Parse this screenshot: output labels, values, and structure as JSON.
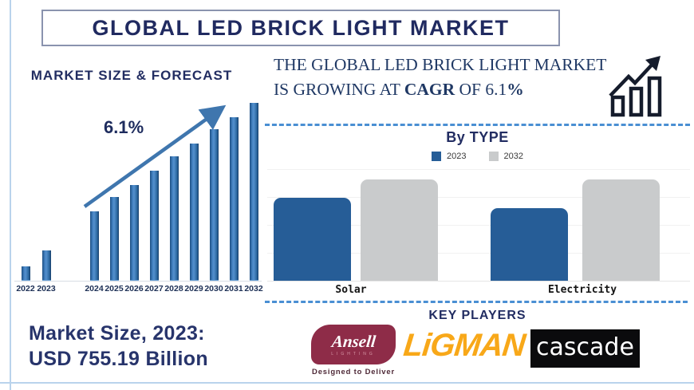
{
  "page_title": "GLOBAL LED BRICK LIGHT MARKET",
  "forecast_section": {
    "heading": "MARKET SIZE & FORECAST",
    "growth_annotation": "6.1%"
  },
  "statement": {
    "part1": "THE GLOBAL LED BRICK LIGHT MARKET IS GROWING AT ",
    "bold1": "CAGR",
    "part2": " OF 6.1",
    "bold2": "%"
  },
  "market_size": {
    "line1": "Market Size, 2023:",
    "line2": "USD 755.19 Billion"
  },
  "by_type_section": {
    "heading": "By TYPE"
  },
  "key_players": {
    "heading": "KEY PLAYERS",
    "logos": [
      {
        "name": "Ansell",
        "sub": "LIGHTING",
        "tagline": "Designed to Deliver",
        "brand_color": "#8e2c48"
      },
      {
        "name": "LiGMAN",
        "brand_color": "#f8a819"
      },
      {
        "name": "cascade",
        "brand_color": "#0b0b0d"
      }
    ]
  },
  "colors": {
    "navy_heading": "#222d62",
    "serif_text": "#1f3864",
    "forecast_bar": "#2e6ba6",
    "trend_arrow": "#3f76ae",
    "dashed_divider": "#4a8fd3",
    "frame": "#b9d3ec"
  },
  "chart_data": [
    {
      "type": "bar",
      "title": "MARKET SIZE & FORECAST",
      "categories": [
        "2022",
        "2023",
        "2024",
        "2025",
        "2026",
        "2027",
        "2028",
        "2029",
        "2030",
        "2031",
        "2032"
      ],
      "values": [
        8,
        17,
        39,
        47,
        54,
        62,
        70,
        77,
        85,
        92,
        100
      ],
      "value_note": "relative bar heights (% of 2032 bar); no y-axis values shown in image",
      "annotation": "6.1%",
      "trend_arrow": true,
      "bar_color": "#2e6ba6",
      "xlabel": "",
      "ylabel": "",
      "grid": false
    },
    {
      "type": "bar",
      "title": "By TYPE",
      "categories": [
        "Solar",
        "Electricity"
      ],
      "series": [
        {
          "name": "2023",
          "color": "#265d97",
          "values": [
            82,
            72
          ]
        },
        {
          "name": "2032",
          "color": "#c9cbcc",
          "values": [
            100,
            100
          ]
        }
      ],
      "value_note": "relative bar heights (% of tallest bar); no y-axis values shown in image",
      "legend_position": "top",
      "grid": true
    }
  ]
}
